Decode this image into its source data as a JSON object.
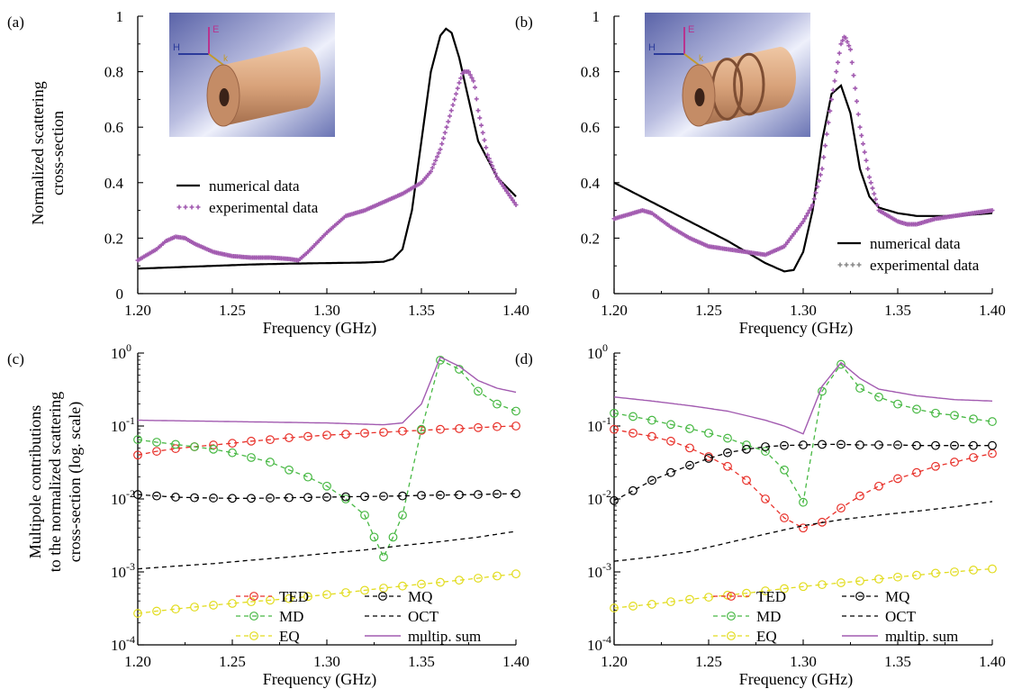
{
  "figure": {
    "ylabel_top_line1": "Normalized scattering",
    "ylabel_top_line2": "cross-section",
    "ylabel_bottom_line1": "Multipole contributions",
    "ylabel_bottom_line2": "to the normalized scattering",
    "ylabel_bottom_line3": "cross-section (log. scale)"
  },
  "colors": {
    "numerical": "#000000",
    "experimental": "#a25bb0",
    "TED": "#e8312a",
    "MD": "#47b843",
    "EQ": "#e2dc1f",
    "MQ": "#000000",
    "OCT": "#000000",
    "sum": "#a25bb0"
  },
  "chart_data": [
    {
      "id": "a",
      "panel_label": "(a)",
      "type": "line",
      "xlabel": "Frequency (GHz)",
      "xlim": [
        1.2,
        1.4
      ],
      "ylim": [
        0,
        1
      ],
      "xticks": [
        "1.20",
        "1.25",
        "1.30",
        "1.35",
        "1.40"
      ],
      "yticks": [
        "0",
        "0.2",
        "0.4",
        "0.6",
        "0.8",
        "1"
      ],
      "inset_icon": "hollow-cylinder",
      "axis_letters": [
        "H",
        "E",
        "k"
      ],
      "legend": [
        "numerical data",
        "experimental data"
      ],
      "series": [
        {
          "name": "numerical data",
          "style": "line",
          "x": [
            1.2,
            1.22,
            1.24,
            1.26,
            1.28,
            1.3,
            1.32,
            1.33,
            1.335,
            1.34,
            1.345,
            1.35,
            1.355,
            1.36,
            1.363,
            1.366,
            1.37,
            1.375,
            1.38,
            1.39,
            1.4
          ],
          "y": [
            0.09,
            0.095,
            0.1,
            0.105,
            0.108,
            0.11,
            0.112,
            0.115,
            0.125,
            0.16,
            0.3,
            0.55,
            0.8,
            0.93,
            0.955,
            0.94,
            0.85,
            0.7,
            0.55,
            0.42,
            0.35
          ]
        },
        {
          "name": "experimental data",
          "style": "markers",
          "x": [
            1.2,
            1.21,
            1.215,
            1.22,
            1.225,
            1.23,
            1.24,
            1.25,
            1.26,
            1.27,
            1.28,
            1.285,
            1.29,
            1.3,
            1.31,
            1.32,
            1.33,
            1.34,
            1.35,
            1.355,
            1.36,
            1.365,
            1.37,
            1.372,
            1.375,
            1.378,
            1.38,
            1.385,
            1.39,
            1.395,
            1.4
          ],
          "y": [
            0.12,
            0.16,
            0.19,
            0.205,
            0.2,
            0.18,
            0.15,
            0.135,
            0.13,
            0.13,
            0.125,
            0.12,
            0.15,
            0.22,
            0.28,
            0.3,
            0.33,
            0.36,
            0.4,
            0.44,
            0.52,
            0.64,
            0.76,
            0.8,
            0.8,
            0.76,
            0.66,
            0.5,
            0.42,
            0.37,
            0.32
          ]
        }
      ]
    },
    {
      "id": "b",
      "panel_label": "(b)",
      "type": "line",
      "xlabel": "Frequency (GHz)",
      "xlim": [
        1.2,
        1.4
      ],
      "ylim": [
        0,
        1
      ],
      "xticks": [
        "1.20",
        "1.25",
        "1.30",
        "1.35",
        "1.40"
      ],
      "yticks": [
        "0",
        "0.2",
        "0.4",
        "0.6",
        "0.8",
        "1"
      ],
      "inset_icon": "grooved-hollow-cylinder",
      "axis_letters": [
        "H",
        "E",
        "k"
      ],
      "legend": [
        "numerical data",
        "experimental data"
      ],
      "series": [
        {
          "name": "numerical data",
          "style": "line",
          "x": [
            1.2,
            1.22,
            1.24,
            1.26,
            1.28,
            1.29,
            1.295,
            1.3,
            1.305,
            1.31,
            1.315,
            1.32,
            1.325,
            1.33,
            1.335,
            1.34,
            1.35,
            1.36,
            1.38,
            1.4
          ],
          "y": [
            0.4,
            0.33,
            0.26,
            0.19,
            0.11,
            0.08,
            0.085,
            0.15,
            0.3,
            0.55,
            0.72,
            0.75,
            0.65,
            0.45,
            0.35,
            0.31,
            0.29,
            0.28,
            0.28,
            0.29
          ]
        },
        {
          "name": "experimental data",
          "style": "markers",
          "x": [
            1.2,
            1.21,
            1.215,
            1.22,
            1.23,
            1.24,
            1.25,
            1.26,
            1.27,
            1.28,
            1.29,
            1.3,
            1.305,
            1.31,
            1.315,
            1.32,
            1.322,
            1.325,
            1.33,
            1.335,
            1.34,
            1.35,
            1.355,
            1.36,
            1.37,
            1.38,
            1.39,
            1.4
          ],
          "y": [
            0.27,
            0.29,
            0.3,
            0.29,
            0.24,
            0.2,
            0.17,
            0.16,
            0.15,
            0.14,
            0.17,
            0.26,
            0.32,
            0.45,
            0.7,
            0.9,
            0.93,
            0.88,
            0.6,
            0.42,
            0.3,
            0.26,
            0.25,
            0.25,
            0.27,
            0.28,
            0.29,
            0.3
          ]
        }
      ]
    },
    {
      "id": "c",
      "panel_label": "(c)",
      "type": "line",
      "yscale": "log",
      "xlabel": "Frequency (GHz)",
      "xlim": [
        1.2,
        1.4
      ],
      "ylim": [
        0.0001,
        1
      ],
      "xticks": [
        "1.20",
        "1.25",
        "1.30",
        "1.35",
        "1.40"
      ],
      "ytick_base": "10",
      "ytick_exponents": [
        "-4",
        "-3",
        "-2",
        "-1",
        "0"
      ],
      "legend": [
        "TED",
        "MQ",
        "MD",
        "OCT",
        "EQ",
        "multip. sum"
      ],
      "series": [
        {
          "name": "TED",
          "style": "dashed-circles",
          "x": [
            1.2,
            1.21,
            1.22,
            1.23,
            1.24,
            1.25,
            1.26,
            1.27,
            1.28,
            1.29,
            1.3,
            1.31,
            1.32,
            1.33,
            1.34,
            1.35,
            1.36,
            1.37,
            1.38,
            1.39,
            1.4
          ],
          "y": [
            0.04,
            0.045,
            0.049,
            0.052,
            0.055,
            0.058,
            0.062,
            0.065,
            0.069,
            0.072,
            0.075,
            0.077,
            0.08,
            0.082,
            0.085,
            0.087,
            0.09,
            0.092,
            0.095,
            0.098,
            0.1
          ]
        },
        {
          "name": "MD",
          "style": "dashed-circles",
          "x": [
            1.2,
            1.21,
            1.22,
            1.23,
            1.24,
            1.25,
            1.26,
            1.27,
            1.28,
            1.29,
            1.3,
            1.31,
            1.32,
            1.325,
            1.33,
            1.335,
            1.34,
            1.35,
            1.36,
            1.37,
            1.38,
            1.39,
            1.4
          ],
          "y": [
            0.065,
            0.06,
            0.056,
            0.052,
            0.048,
            0.043,
            0.037,
            0.032,
            0.025,
            0.02,
            0.015,
            0.01,
            0.006,
            0.003,
            0.0016,
            0.003,
            0.006,
            0.09,
            0.8,
            0.6,
            0.3,
            0.2,
            0.16
          ]
        },
        {
          "name": "EQ",
          "style": "dashed-circles",
          "x": [
            1.2,
            1.21,
            1.22,
            1.23,
            1.24,
            1.25,
            1.26,
            1.27,
            1.28,
            1.29,
            1.3,
            1.31,
            1.32,
            1.33,
            1.34,
            1.35,
            1.36,
            1.37,
            1.38,
            1.39,
            1.4
          ],
          "y": [
            0.00027,
            0.00029,
            0.00031,
            0.00033,
            0.00035,
            0.00037,
            0.00039,
            0.00041,
            0.00043,
            0.00046,
            0.00049,
            0.00052,
            0.00056,
            0.0006,
            0.00064,
            0.00068,
            0.00072,
            0.00077,
            0.00082,
            0.00088,
            0.00094
          ]
        },
        {
          "name": "MQ",
          "style": "dashed-circles",
          "x": [
            1.2,
            1.21,
            1.22,
            1.23,
            1.24,
            1.25,
            1.26,
            1.27,
            1.28,
            1.29,
            1.3,
            1.31,
            1.32,
            1.33,
            1.34,
            1.35,
            1.36,
            1.37,
            1.38,
            1.39,
            1.4
          ],
          "y": [
            0.0115,
            0.011,
            0.0106,
            0.0104,
            0.0103,
            0.0102,
            0.0102,
            0.0103,
            0.0104,
            0.0105,
            0.0106,
            0.0107,
            0.0108,
            0.0109,
            0.011,
            0.0112,
            0.0113,
            0.0114,
            0.0115,
            0.0117,
            0.0118
          ]
        },
        {
          "name": "OCT",
          "style": "dashed",
          "x": [
            1.2,
            1.22,
            1.24,
            1.26,
            1.28,
            1.3,
            1.32,
            1.34,
            1.36,
            1.38,
            1.4
          ],
          "y": [
            0.0011,
            0.0012,
            0.0013,
            0.00145,
            0.0016,
            0.0018,
            0.002,
            0.0023,
            0.0026,
            0.003,
            0.0036
          ]
        },
        {
          "name": "multip. sum",
          "style": "line",
          "x": [
            1.2,
            1.22,
            1.24,
            1.26,
            1.28,
            1.3,
            1.32,
            1.33,
            1.34,
            1.35,
            1.36,
            1.37,
            1.38,
            1.39,
            1.4
          ],
          "y": [
            0.12,
            0.118,
            0.116,
            0.114,
            0.112,
            0.11,
            0.106,
            0.104,
            0.11,
            0.2,
            0.88,
            0.66,
            0.42,
            0.33,
            0.29
          ]
        }
      ]
    },
    {
      "id": "d",
      "panel_label": "(d)",
      "type": "line",
      "yscale": "log",
      "xlabel": "Frequency (GHz)",
      "xlim": [
        1.2,
        1.4
      ],
      "ylim": [
        0.0001,
        1
      ],
      "xticks": [
        "1.20",
        "1.25",
        "1.30",
        "1.35",
        "1.40"
      ],
      "ytick_base": "10",
      "ytick_exponents": [
        "-4",
        "-3",
        "-2",
        "-1",
        "0"
      ],
      "legend": [
        "TED",
        "MQ",
        "MD",
        "OCT",
        "EQ",
        "multip. sum"
      ],
      "series": [
        {
          "name": "TED",
          "style": "dashed-circles",
          "x": [
            1.2,
            1.21,
            1.22,
            1.23,
            1.24,
            1.25,
            1.26,
            1.27,
            1.28,
            1.29,
            1.3,
            1.31,
            1.32,
            1.33,
            1.34,
            1.35,
            1.36,
            1.37,
            1.38,
            1.39,
            1.4
          ],
          "y": [
            0.09,
            0.08,
            0.072,
            0.062,
            0.05,
            0.038,
            0.028,
            0.018,
            0.01,
            0.0055,
            0.004,
            0.0048,
            0.0075,
            0.011,
            0.015,
            0.019,
            0.023,
            0.028,
            0.032,
            0.037,
            0.042
          ]
        },
        {
          "name": "MD",
          "style": "dashed-circles",
          "x": [
            1.2,
            1.21,
            1.22,
            1.23,
            1.24,
            1.25,
            1.26,
            1.27,
            1.28,
            1.29,
            1.3,
            1.31,
            1.32,
            1.33,
            1.34,
            1.35,
            1.36,
            1.37,
            1.38,
            1.39,
            1.4
          ],
          "y": [
            0.15,
            0.135,
            0.12,
            0.105,
            0.092,
            0.08,
            0.068,
            0.055,
            0.045,
            0.025,
            0.009,
            0.3,
            0.7,
            0.33,
            0.25,
            0.2,
            0.17,
            0.15,
            0.14,
            0.125,
            0.115
          ]
        },
        {
          "name": "EQ",
          "style": "dashed-circles",
          "x": [
            1.2,
            1.21,
            1.22,
            1.23,
            1.24,
            1.25,
            1.26,
            1.27,
            1.28,
            1.29,
            1.3,
            1.31,
            1.32,
            1.33,
            1.34,
            1.35,
            1.36,
            1.37,
            1.38,
            1.39,
            1.4
          ],
          "y": [
            0.00032,
            0.00034,
            0.00036,
            0.00039,
            0.00042,
            0.00045,
            0.00048,
            0.00051,
            0.00055,
            0.00059,
            0.00063,
            0.00067,
            0.00071,
            0.00075,
            0.0008,
            0.00085,
            0.0009,
            0.00096,
            0.001,
            0.00106,
            0.0011
          ]
        },
        {
          "name": "MQ",
          "style": "dashed-circles",
          "x": [
            1.2,
            1.21,
            1.22,
            1.23,
            1.24,
            1.25,
            1.26,
            1.27,
            1.28,
            1.29,
            1.3,
            1.31,
            1.32,
            1.33,
            1.34,
            1.35,
            1.36,
            1.37,
            1.38,
            1.39,
            1.4
          ],
          "y": [
            0.0095,
            0.013,
            0.018,
            0.023,
            0.029,
            0.036,
            0.043,
            0.048,
            0.052,
            0.054,
            0.055,
            0.056,
            0.056,
            0.055,
            0.055,
            0.055,
            0.054,
            0.054,
            0.054,
            0.054,
            0.054
          ]
        },
        {
          "name": "OCT",
          "style": "dashed",
          "x": [
            1.2,
            1.22,
            1.24,
            1.26,
            1.28,
            1.3,
            1.32,
            1.34,
            1.36,
            1.38,
            1.4
          ],
          "y": [
            0.0014,
            0.0016,
            0.0019,
            0.0025,
            0.0033,
            0.0043,
            0.0052,
            0.006,
            0.0068,
            0.0078,
            0.0092
          ]
        },
        {
          "name": "multip. sum",
          "style": "line",
          "x": [
            1.2,
            1.22,
            1.24,
            1.26,
            1.28,
            1.29,
            1.3,
            1.31,
            1.32,
            1.33,
            1.34,
            1.36,
            1.38,
            1.4
          ],
          "y": [
            0.25,
            0.22,
            0.19,
            0.16,
            0.12,
            0.1,
            0.078,
            0.35,
            0.74,
            0.45,
            0.32,
            0.26,
            0.23,
            0.22
          ]
        }
      ]
    }
  ]
}
